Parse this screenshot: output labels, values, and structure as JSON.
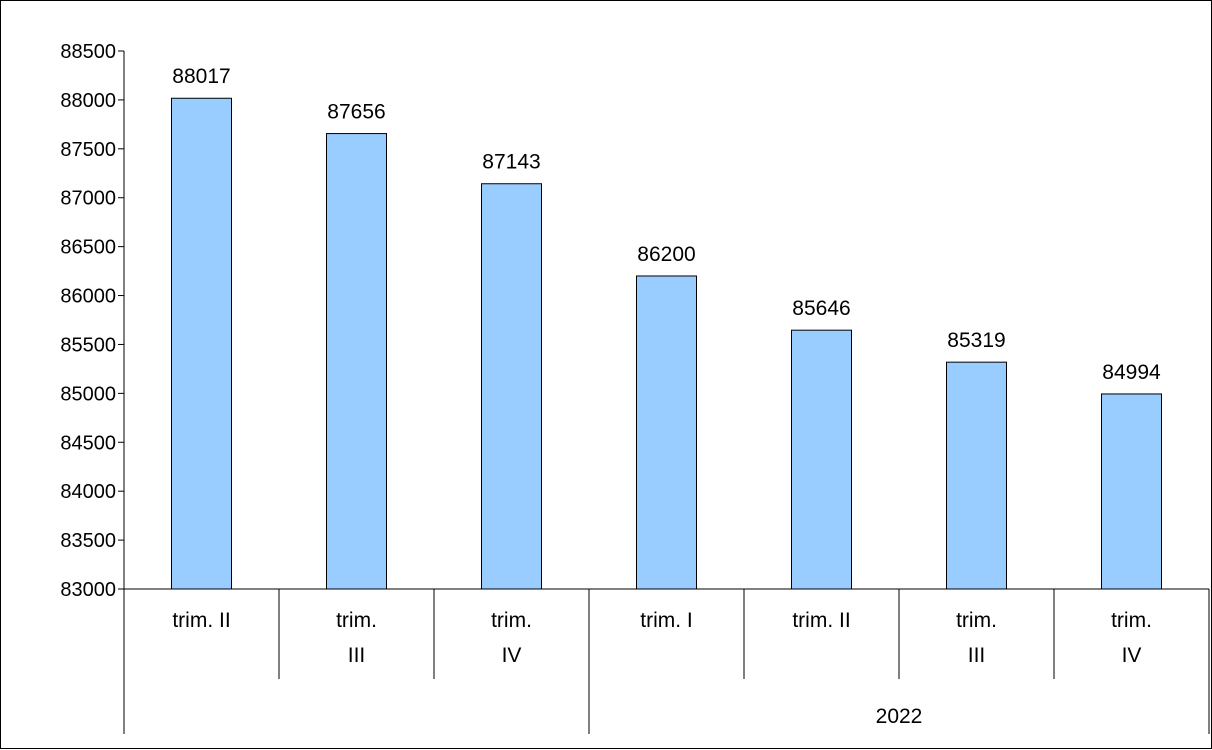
{
  "chart_data": {
    "type": "bar",
    "categories": [
      [
        "trim. II"
      ],
      [
        "trim.",
        "III"
      ],
      [
        "trim.",
        "IV"
      ],
      [
        "trim. I"
      ],
      [
        "trim. II"
      ],
      [
        "trim.",
        "III"
      ],
      [
        "trim.",
        "IV"
      ]
    ],
    "values": [
      88017,
      87656,
      87143,
      86200,
      85646,
      85319,
      84994
    ],
    "data_labels": [
      "88017",
      "87656",
      "87143",
      "86200",
      "85646",
      "85319",
      "84994"
    ],
    "groups": [
      {
        "label": "",
        "start": 0,
        "end": 3
      },
      {
        "label": "2022",
        "start": 3,
        "end": 7
      }
    ],
    "yticks": [
      "83000",
      "83500",
      "84000",
      "84500",
      "85000",
      "85500",
      "86000",
      "86500",
      "87000",
      "87500",
      "88000",
      "88500"
    ],
    "ylim": [
      83000,
      88500
    ],
    "title": "",
    "xlabel": "",
    "ylabel": "",
    "grid": false,
    "legend": "none",
    "bar_color": "#99ccff",
    "bar_stroke": "#000000"
  }
}
